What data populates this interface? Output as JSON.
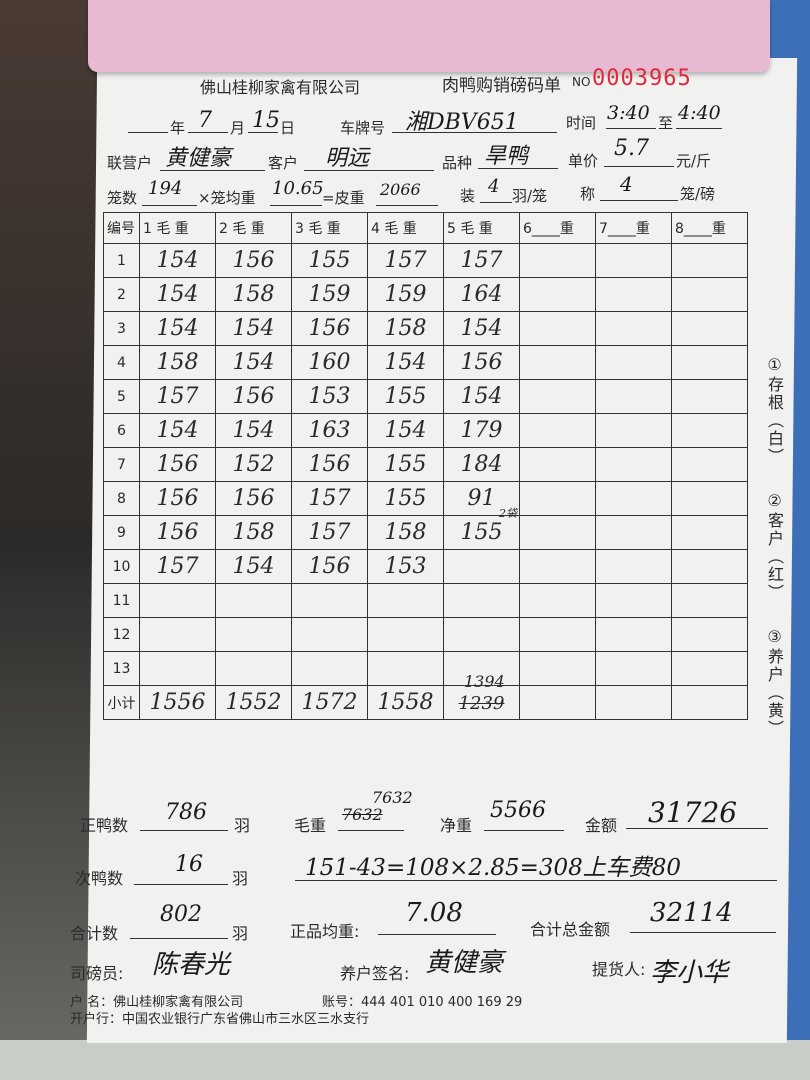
{
  "header": {
    "company": "佛山桂柳家禽有限公司",
    "form_title": "肉鸭购销磅码单",
    "no_label": "NO",
    "serial": "0003965"
  },
  "row1": {
    "year_label": "年",
    "month": "7",
    "month_label": "月",
    "day": "15",
    "day_label": "日",
    "plate_label": "车牌号",
    "plate": "湘DBV651",
    "time_label": "时间",
    "time_from": "3:40",
    "to_label": "至",
    "time_to": "4:40"
  },
  "row2": {
    "partner_label": "联营户",
    "partner": "黄健豪",
    "customer_label": "客户",
    "customer": "明远",
    "breed_label": "品种",
    "breed": "旱鸭",
    "price_label": "单价",
    "price": "5.7",
    "price_unit": "元/斤"
  },
  "row3": {
    "cages_label": "笼数",
    "cages": "194",
    "avg_label": "×笼均重",
    "avg": "10.65",
    "tare_label": "=皮重",
    "tare": "2066",
    "pack_label": "装",
    "pack": "4",
    "pack_unit": "羽/笼",
    "weigh_label": "称",
    "weigh": "4",
    "weigh_unit": "笼/磅"
  },
  "table": {
    "headers": [
      "编号",
      "1  毛 重",
      "2  毛 重",
      "3  毛 重",
      "4  毛 重",
      "5  毛 重",
      "6____重",
      "7____重",
      "8____重"
    ],
    "rows": [
      [
        "1",
        "154",
        "156",
        "155",
        "157",
        "157",
        "",
        "",
        ""
      ],
      [
        "2",
        "154",
        "158",
        "159",
        "159",
        "164",
        "",
        "",
        ""
      ],
      [
        "3",
        "154",
        "154",
        "156",
        "158",
        "154",
        "",
        "",
        ""
      ],
      [
        "4",
        "158",
        "154",
        "160",
        "154",
        "156",
        "",
        "",
        ""
      ],
      [
        "5",
        "157",
        "156",
        "153",
        "155",
        "154",
        "",
        "",
        ""
      ],
      [
        "6",
        "154",
        "154",
        "163",
        "154",
        "179",
        "",
        "",
        ""
      ],
      [
        "7",
        "156",
        "152",
        "156",
        "155",
        "184",
        "",
        "",
        ""
      ],
      [
        "8",
        "156",
        "156",
        "157",
        "155",
        "91",
        "",
        "",
        ""
      ],
      [
        "9",
        "156",
        "158",
        "157",
        "158",
        "155",
        "",
        "",
        ""
      ],
      [
        "10",
        "157",
        "154",
        "156",
        "153",
        "",
        "",
        "",
        ""
      ],
      [
        "11",
        "",
        "",
        "",
        "",
        "",
        "",
        "",
        ""
      ],
      [
        "12",
        "",
        "",
        "",
        "",
        "",
        "",
        "",
        ""
      ],
      [
        "13",
        "",
        "",
        "",
        "",
        "",
        "",
        "",
        ""
      ]
    ],
    "row8_col5_note": "2袋",
    "subtotal_label": "小计",
    "subtotals": [
      "1556",
      "1552",
      "1572",
      "1558"
    ],
    "subtotal5_struck": "1239",
    "subtotal5": "1394"
  },
  "side": {
    "copy1": "①存根（白）",
    "copy2": "②客户（红）",
    "copy3": "③养户（黄）"
  },
  "summary": {
    "good_label": "正鸭数",
    "good": "786",
    "unit": "羽",
    "gross_label": "毛重",
    "gross_struck": "7632",
    "gross": "7632",
    "net_label": "净重",
    "net": "5566",
    "amount_label": "金额",
    "amount": "31726",
    "second_label": "次鸭数",
    "second": "16",
    "calc": "151-43=108×2.85=308上车费80",
    "total_label": "合计数",
    "total": "802",
    "avgw_label": "正品均重:",
    "avgw": "7.08",
    "grand_label": "合计总金额",
    "grand": "32114",
    "weigher_label": "司磅员:",
    "weigher_sig": "陈春光",
    "farmer_label": "养户签名:",
    "farmer_sig": "黄健豪",
    "pickup_label": "提货人:",
    "pickup_sig": "李小华"
  },
  "footer": {
    "account_name": "户    名：佛山桂柳家禽有限公司",
    "account_no": "账号：444 401 010 400 169 29",
    "bank": "开户行：中国农业银行广东省佛山市三水区三水支行"
  },
  "colors": {
    "serial": "#e0283a",
    "pink_sheet": "#e9b8d3",
    "paper": "#f1f1ef"
  }
}
